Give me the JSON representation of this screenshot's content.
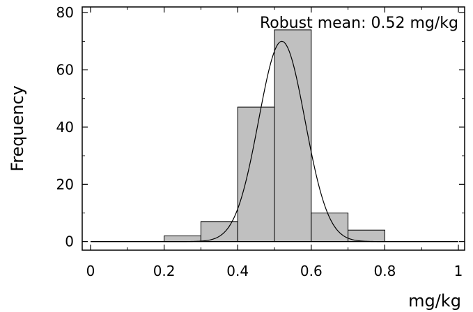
{
  "chart_data": {
    "type": "bar",
    "title": "",
    "xlabel": "mg/kg",
    "ylabel": "Frequency",
    "xlim": [
      0,
      1
    ],
    "ylim": [
      -3,
      82
    ],
    "x_ticks": [
      "0",
      "0.2",
      "0.4",
      "0.6",
      "0.8",
      "1"
    ],
    "y_ticks": [
      "0",
      "20",
      "40",
      "60",
      "80"
    ],
    "bins": [
      {
        "from": 0.2,
        "to": 0.3,
        "value": 2
      },
      {
        "from": 0.3,
        "to": 0.4,
        "value": 7
      },
      {
        "from": 0.4,
        "to": 0.5,
        "value": 47
      },
      {
        "from": 0.5,
        "to": 0.6,
        "value": 74
      },
      {
        "from": 0.6,
        "to": 0.7,
        "value": 10
      },
      {
        "from": 0.7,
        "to": 0.8,
        "value": 4
      }
    ],
    "fit_curve": {
      "type": "normal",
      "mean": 0.52,
      "sd": 0.063,
      "peak": 70
    },
    "annotation": "Robust mean: 0.52 mg/kg",
    "grid": false,
    "bar_color": "#c0c0c0",
    "line_color": "#000000"
  }
}
